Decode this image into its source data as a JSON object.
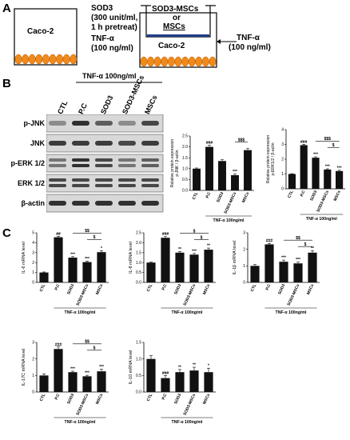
{
  "panelA": {
    "letter": "A",
    "schematic1": {
      "cell_label": "Caco-2",
      "sod3_line1": "SOD3",
      "sod3_line2": "(300 unit/ml,",
      "sod3_line3": "1 h pretreat)",
      "tnf_line1": "TNF-α",
      "tnf_line2": "(100 ng/ml)"
    },
    "schematic2": {
      "insert_line1": "SOD3-MSCs",
      "insert_line2": "or",
      "insert_line3": "MSCs",
      "cell_label": "Caco-2",
      "tnf_line1": "TNF-α",
      "tnf_line2": "(100 ng/ml)"
    }
  },
  "panelB": {
    "letter": "B",
    "tnf_header": "TNF-α 100ng/ml",
    "lanes": [
      "CTL",
      "P.C",
      "SOD3",
      "SOD3-MSCs",
      "MSCs"
    ],
    "blots": [
      "p-JNK",
      "JNK",
      "p-ERK 1/2",
      "ERK 1/2",
      "β-actin"
    ]
  },
  "panelC": {
    "letter": "C"
  },
  "chart_data": [
    {
      "type": "bar",
      "id": "pjnk",
      "categories": [
        "CTL",
        "P.C",
        "SOD3",
        "SOD3-MSCs",
        "MSCs"
      ],
      "values": [
        1.0,
        2.0,
        1.35,
        0.7,
        1.85
      ],
      "errors": [
        0.03,
        0.07,
        0.06,
        0.05,
        0.07
      ],
      "ylabel_line1": "Relative protein expression",
      "ylabel_line2": "p-JNK / β-actin",
      "ylim": [
        0,
        2.5
      ],
      "yticks": [
        "0.0",
        "0.5",
        "1.0",
        "1.5",
        "2.0",
        "2.5"
      ],
      "xgroup_label": "TNF-α 100ng/ml",
      "bar_sig": [
        "",
        "###",
        "",
        "***",
        ""
      ],
      "brackets": [
        {
          "from": 3,
          "to": 4,
          "label": "$$$"
        }
      ]
    },
    {
      "type": "bar",
      "id": "perk",
      "categories": [
        "CTL",
        "P.C",
        "SOD3",
        "SOD3-MSCs",
        "MSCs"
      ],
      "values": [
        1.0,
        2.95,
        2.1,
        1.3,
        1.2
      ],
      "errors": [
        0.02,
        0.06,
        0.06,
        0.05,
        0.05
      ],
      "ylabel_line1": "Relative protein expression",
      "ylabel_line2": "p-ERK1/2 / β-actin",
      "ylim": [
        0,
        4
      ],
      "yticks": [
        "0",
        "1",
        "2",
        "3",
        "4"
      ],
      "xgroup_label": "TNF-α 100ng/ml",
      "bar_sig": [
        "",
        "###",
        "***",
        "***",
        "***"
      ],
      "brackets": [
        {
          "from": 2,
          "to": 4,
          "label": "$$$"
        },
        {
          "from": 3,
          "to": 4,
          "label": "$"
        }
      ]
    },
    {
      "type": "bar",
      "id": "il6",
      "categories": [
        "CTL",
        "P.C",
        "SOD3",
        "SOD3-MSCs",
        "MSCs"
      ],
      "values": [
        1.0,
        4.55,
        2.5,
        2.05,
        3.05
      ],
      "errors": [
        0.05,
        0.1,
        0.1,
        0.1,
        0.15
      ],
      "ylabel_line1": "IL-6 mRNA level",
      "ylabel_line2": "",
      "ylim": [
        0,
        5
      ],
      "yticks": [
        "0",
        "1",
        "2",
        "3",
        "4",
        "5"
      ],
      "xgroup_label": "TNF-α 100ng/ml",
      "bar_sig": [
        "",
        "##",
        "***",
        "***",
        "*"
      ],
      "brackets": [
        {
          "from": 2,
          "to": 4,
          "label": "$$"
        },
        {
          "from": 3,
          "to": 4,
          "label": "$"
        }
      ]
    },
    {
      "type": "bar",
      "id": "il8",
      "categories": [
        "CTL",
        "P.C",
        "SOD3",
        "SOD3-MSCs",
        "MSCs"
      ],
      "values": [
        1.0,
        2.25,
        1.5,
        1.4,
        1.65
      ],
      "errors": [
        0.02,
        0.06,
        0.06,
        0.06,
        0.08
      ],
      "ylabel_line1": "IL-8 mRNA level",
      "ylabel_line2": "",
      "ylim": [
        0,
        2.5
      ],
      "yticks": [
        "0.0",
        "0.5",
        "1.0",
        "1.5",
        "2.0",
        "2.5"
      ],
      "xgroup_label": "TNF-α 100ng/ml",
      "bar_sig": [
        "",
        "###",
        "**",
        "***",
        "**"
      ],
      "brackets": [
        {
          "from": 2,
          "to": 4,
          "label": "$"
        },
        {
          "from": 3,
          "to": 4,
          "label": "$"
        }
      ]
    },
    {
      "type": "bar",
      "id": "il1b",
      "categories": [
        "CTL",
        "P.C",
        "SOD3",
        "SOD3-MSCs",
        "MSCs"
      ],
      "values": [
        1.0,
        2.3,
        1.25,
        1.15,
        1.8
      ],
      "errors": [
        0.08,
        0.06,
        0.1,
        0.08,
        0.12
      ],
      "ylabel_line1": "IL-1β mRNA level",
      "ylabel_line2": "",
      "ylim": [
        0,
        3
      ],
      "yticks": [
        "0",
        "1",
        "2",
        "3"
      ],
      "xgroup_label": "TNF-α 100ng/ml",
      "bar_sig": [
        "",
        "###",
        "***",
        "***",
        "**"
      ],
      "brackets": [
        {
          "from": 2,
          "to": 4,
          "label": "$$"
        },
        {
          "from": 3,
          "to": 4,
          "label": "$"
        }
      ]
    },
    {
      "type": "bar",
      "id": "il17c",
      "categories": [
        "CTL",
        "P.C",
        "SOD3",
        "SOD3-MSCs",
        "MSCs"
      ],
      "values": [
        1.0,
        2.6,
        1.2,
        0.95,
        1.25
      ],
      "errors": [
        0.1,
        0.12,
        0.06,
        0.06,
        0.12
      ],
      "ylabel_line1": "IL-17C mRNA level",
      "ylabel_line2": "",
      "ylim": [
        0,
        3
      ],
      "yticks": [
        "0",
        "1",
        "2",
        "3"
      ],
      "xgroup_label": "TNF-α 100ng/ml",
      "bar_sig": [
        "",
        "###",
        "***",
        "***",
        "***"
      ],
      "brackets": [
        {
          "from": 2,
          "to": 4,
          "label": "$$"
        },
        {
          "from": 3,
          "to": 4,
          "label": "$"
        }
      ]
    },
    {
      "type": "bar",
      "id": "il10",
      "categories": [
        "CTL",
        "P.C",
        "SOD3",
        "SOD3-MSCs",
        "MSCs"
      ],
      "values": [
        1.0,
        0.42,
        0.6,
        0.65,
        0.6
      ],
      "errors": [
        0.1,
        0.08,
        0.08,
        0.1,
        0.12
      ],
      "ylabel_line1": "IL-10 mRNA level",
      "ylabel_line2": "",
      "ylim": [
        0,
        1.5
      ],
      "yticks": [
        "0.0",
        "0.5",
        "1.0",
        "1.5"
      ],
      "xgroup_label": "TNF-α 100ng/ml",
      "bar_sig": [
        "",
        "###",
        "**",
        "**",
        "*"
      ],
      "brackets": []
    }
  ]
}
